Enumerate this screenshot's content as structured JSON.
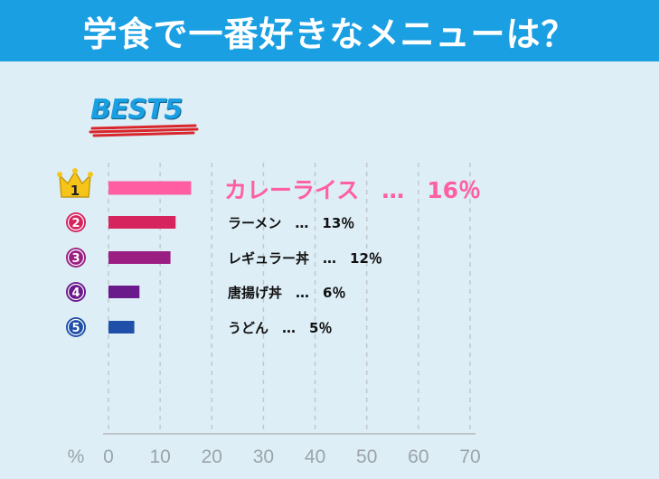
{
  "header": {
    "title": "学食で一番好きなメニューは？"
  },
  "badge": {
    "text": "BEST5"
  },
  "chart_data": {
    "type": "bar",
    "orientation": "horizontal",
    "title": "学食で一番好きなメニューは？",
    "categories": [
      "カレーライス",
      "ラーメン",
      "レギュラー丼",
      "唐揚げ丼",
      "うどん"
    ],
    "values": [
      16,
      13,
      12,
      6,
      5
    ],
    "ranks": [
      "1",
      "2",
      "3",
      "4",
      "5"
    ],
    "display_labels": [
      "カレーライス　…　16％",
      "ラーメン　…　13％",
      "レギュラー丼　…　12％",
      "唐揚げ丼　…　6％",
      "うどん　…　5％"
    ],
    "unit_label": "%",
    "xlim": [
      0,
      70
    ],
    "xticks": [
      "0",
      "10",
      "20",
      "30",
      "40",
      "50",
      "60",
      "70"
    ],
    "grid": true,
    "bar_colors": [
      "#ff5ea2",
      "#d6245e",
      "#9b1e82",
      "#6b1a8c",
      "#1f4fa8"
    ],
    "label_colors": [
      "#ff5ea2",
      "#111111",
      "#111111",
      "#111111",
      "#111111"
    ],
    "accent": "#1a9fe2"
  }
}
